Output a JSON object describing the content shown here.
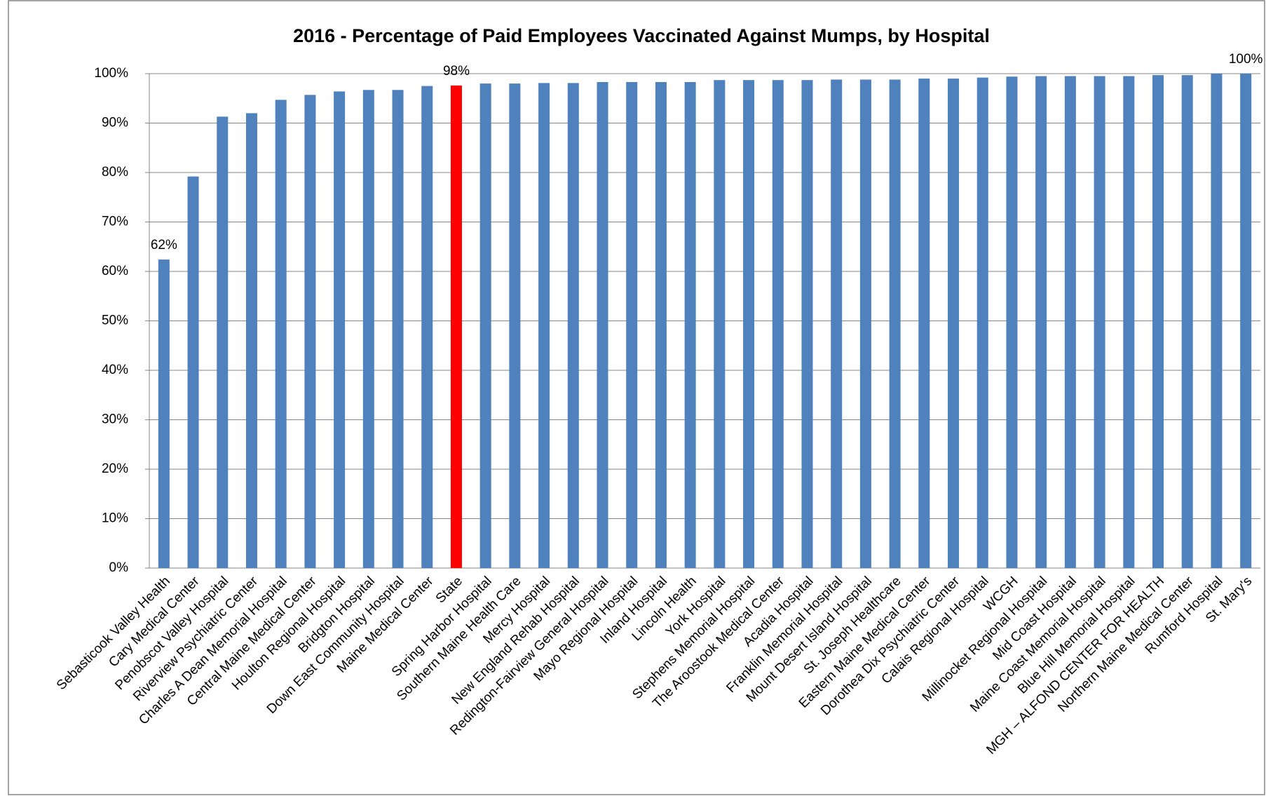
{
  "chart_data": {
    "type": "bar",
    "title": "2016 - Percentage of Paid Employees Vaccinated Against Mumps, by Hospital",
    "categories": [
      "Sebasticook Valley Health",
      "Cary Medical Center",
      "Penobscot Valley Hospital",
      "Riverview Psychiatric Center",
      "Charles A Dean Memorial Hospital",
      "Central Maine Medical Center",
      "Houlton Regional Hospital",
      "Bridgton Hospital",
      "Down East Community Hospital",
      "Maine Medical Center",
      "State",
      "Spring Harbor Hospital",
      "Southern Maine Health Care",
      "Mercy Hospital",
      "New England Rehab Hospital",
      "Redington-Fairview General Hospital",
      "Mayo Regional Hospital",
      "Inland Hospital",
      "Lincoln Health",
      "York Hospital",
      "Stephens Memorial Hospital",
      "The Aroostook Medical Center",
      "Acadia Hospital",
      "Franklin Memorial Hospital",
      "Mount Desert Island Hospital",
      "St. Joseph Healthcare",
      "Eastern Maine Medical Center",
      "Dorothea Dix Psychiatric Center",
      "Calais Regional Hospital",
      "WCGH",
      "Millinocket Regional Hospital",
      "Mid Coast Hospital",
      "Maine Coast Memorial Hospital",
      "Blue Hill Memorial Hospital",
      "MGH – ALFOND CENTER FOR HEALTH",
      "Northern Maine Medical Center",
      "Rumford Hospital",
      "St. Mary's"
    ],
    "values": [
      62.4,
      79.2,
      91.3,
      92.0,
      94.7,
      95.7,
      96.4,
      96.7,
      96.7,
      97.5,
      97.6,
      98.0,
      98.0,
      98.1,
      98.1,
      98.3,
      98.3,
      98.3,
      98.3,
      98.7,
      98.7,
      98.7,
      98.7,
      98.8,
      98.8,
      98.8,
      99.0,
      99.0,
      99.2,
      99.4,
      99.5,
      99.5,
      99.5,
      99.5,
      99.7,
      99.7,
      100,
      100
    ],
    "value_labels": [
      "62%",
      null,
      null,
      null,
      null,
      null,
      null,
      null,
      null,
      null,
      "98%",
      null,
      null,
      null,
      null,
      null,
      null,
      null,
      null,
      null,
      null,
      null,
      null,
      null,
      null,
      null,
      null,
      null,
      null,
      null,
      null,
      null,
      null,
      null,
      null,
      null,
      null,
      "100%"
    ],
    "colors": [
      "#4f81bd",
      "#4f81bd",
      "#4f81bd",
      "#4f81bd",
      "#4f81bd",
      "#4f81bd",
      "#4f81bd",
      "#4f81bd",
      "#4f81bd",
      "#4f81bd",
      "#ff0000",
      "#4f81bd",
      "#4f81bd",
      "#4f81bd",
      "#4f81bd",
      "#4f81bd",
      "#4f81bd",
      "#4f81bd",
      "#4f81bd",
      "#4f81bd",
      "#4f81bd",
      "#4f81bd",
      "#4f81bd",
      "#4f81bd",
      "#4f81bd",
      "#4f81bd",
      "#4f81bd",
      "#4f81bd",
      "#4f81bd",
      "#4f81bd",
      "#4f81bd",
      "#4f81bd",
      "#4f81bd",
      "#4f81bd",
      "#4f81bd",
      "#4f81bd",
      "#4f81bd",
      "#4f81bd"
    ],
    "ylim": [
      0,
      100
    ],
    "yticks": [
      {
        "value": 0,
        "label": "0%"
      },
      {
        "value": 10,
        "label": "10%"
      },
      {
        "value": 20,
        "label": "20%"
      },
      {
        "value": 30,
        "label": "30%"
      },
      {
        "value": 40,
        "label": "40%"
      },
      {
        "value": 50,
        "label": "50%"
      },
      {
        "value": 60,
        "label": "60%"
      },
      {
        "value": 70,
        "label": "70%"
      },
      {
        "value": 80,
        "label": "80%"
      },
      {
        "value": 90,
        "label": "90%"
      },
      {
        "value": 100,
        "label": "100%"
      }
    ],
    "grid": true
  }
}
